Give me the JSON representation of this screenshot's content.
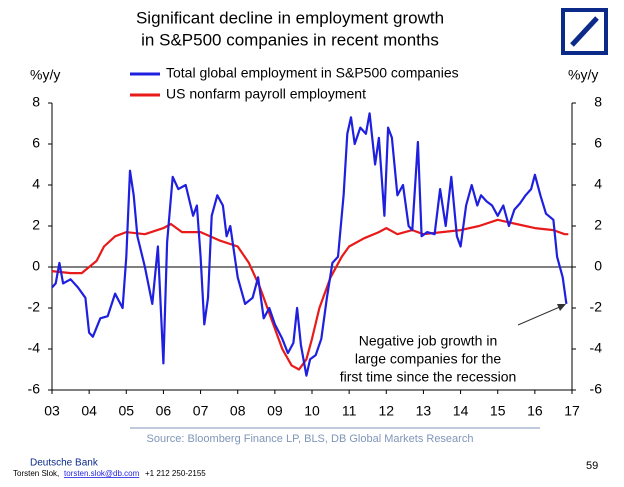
{
  "chart_data": {
    "type": "line",
    "title": [
      "Significant decline in employment growth",
      "in S&P500 companies in recent months"
    ],
    "y_label": "%y/y",
    "y2_label": "%y/y",
    "xlim": [
      2003,
      2017
    ],
    "xticks": [
      {
        "value": 2003,
        "label": "03"
      },
      {
        "value": 2004,
        "label": "04"
      },
      {
        "value": 2005,
        "label": "05"
      },
      {
        "value": 2006,
        "label": "06"
      },
      {
        "value": 2007,
        "label": "07"
      },
      {
        "value": 2008,
        "label": "08"
      },
      {
        "value": 2009,
        "label": "09"
      },
      {
        "value": 2010,
        "label": "10"
      },
      {
        "value": 2011,
        "label": "11"
      },
      {
        "value": 2012,
        "label": "12"
      },
      {
        "value": 2013,
        "label": "13"
      },
      {
        "value": 2014,
        "label": "14"
      },
      {
        "value": 2015,
        "label": "15"
      },
      {
        "value": 2016,
        "label": "16"
      },
      {
        "value": 2017,
        "label": "17"
      }
    ],
    "ylim": [
      -6,
      8
    ],
    "yticks": [
      -6,
      -4,
      -2,
      0,
      2,
      4,
      6,
      8
    ],
    "y2lim": [
      -6,
      8
    ],
    "y2ticks": [
      -6,
      -4,
      -2,
      0,
      2,
      4,
      6,
      8
    ],
    "grid": false,
    "series": [
      {
        "name": "Total global employment in S&P500 companies",
        "color": "#1f1fe0",
        "x": [
          2003.0,
          2003.1,
          2003.2,
          2003.3,
          2003.5,
          2003.7,
          2003.9,
          2004.0,
          2004.1,
          2004.3,
          2004.5,
          2004.7,
          2004.9,
          2005.0,
          2005.1,
          2005.2,
          2005.3,
          2005.5,
          2005.7,
          2005.85,
          2006.0,
          2006.1,
          2006.25,
          2006.4,
          2006.6,
          2006.8,
          2006.9,
          2007.0,
          2007.1,
          2007.2,
          2007.3,
          2007.45,
          2007.6,
          2007.7,
          2007.8,
          2008.0,
          2008.2,
          2008.4,
          2008.55,
          2008.7,
          2008.85,
          2009.0,
          2009.2,
          2009.35,
          2009.5,
          2009.6,
          2009.7,
          2009.85,
          2009.95,
          2010.1,
          2010.25,
          2010.4,
          2010.55,
          2010.7,
          2010.85,
          2010.95,
          2011.05,
          2011.15,
          2011.3,
          2011.45,
          2011.55,
          2011.7,
          2011.8,
          2011.95,
          2012.05,
          2012.15,
          2012.3,
          2012.45,
          2012.6,
          2012.7,
          2012.85,
          2012.95,
          2013.1,
          2013.3,
          2013.45,
          2013.6,
          2013.75,
          2013.9,
          2014.0,
          2014.15,
          2014.3,
          2014.45,
          2014.55,
          2014.7,
          2014.85,
          2015.0,
          2015.15,
          2015.3,
          2015.45,
          2015.6,
          2015.75,
          2015.9,
          2016.0,
          2016.15,
          2016.3,
          2016.5,
          2016.6,
          2016.75,
          2016.85
        ],
        "values": [
          -1.0,
          -0.8,
          0.2,
          -0.8,
          -0.6,
          -1.0,
          -1.5,
          -3.2,
          -3.4,
          -2.5,
          -2.4,
          -1.3,
          -2.0,
          0.5,
          4.7,
          3.5,
          1.5,
          0.0,
          -1.8,
          1.0,
          -4.7,
          1.2,
          4.4,
          3.8,
          4.0,
          2.5,
          3.0,
          0.5,
          -2.8,
          -1.5,
          2.5,
          3.5,
          3.0,
          1.5,
          2.0,
          -0.5,
          -1.8,
          -1.5,
          -0.5,
          -2.5,
          -2.0,
          -2.8,
          -3.5,
          -4.2,
          -3.7,
          -2.0,
          -3.8,
          -5.3,
          -4.5,
          -4.3,
          -3.5,
          -1.5,
          0.2,
          0.5,
          3.5,
          6.5,
          7.3,
          6.0,
          6.8,
          6.5,
          7.5,
          5.0,
          6.3,
          2.5,
          6.8,
          6.3,
          3.5,
          4.0,
          2.0,
          1.8,
          6.1,
          1.5,
          1.7,
          1.6,
          3.8,
          2.0,
          4.4,
          1.5,
          1.0,
          3.0,
          4.0,
          3.0,
          3.5,
          3.2,
          3.0,
          2.5,
          3.0,
          2.0,
          2.8,
          3.1,
          3.5,
          3.8,
          4.5,
          3.5,
          2.6,
          2.3,
          0.5,
          -0.5,
          -1.8
        ]
      },
      {
        "name": "US nonfarm payroll employment",
        "color": "#e81a1a",
        "x": [
          2003.0,
          2003.5,
          2003.8,
          2004.2,
          2004.4,
          2004.7,
          2005.0,
          2005.5,
          2006.0,
          2006.2,
          2006.5,
          2007.0,
          2007.5,
          2008.0,
          2008.3,
          2008.6,
          2008.9,
          2009.2,
          2009.45,
          2009.65,
          2009.85,
          2010.0,
          2010.2,
          2010.5,
          2010.8,
          2011.0,
          2011.4,
          2011.8,
          2012.0,
          2012.3,
          2012.7,
          2013.0,
          2013.5,
          2014.0,
          2014.5,
          2015.0,
          2015.5,
          2016.0,
          2016.5,
          2016.8,
          2016.9
        ],
        "values": [
          -0.2,
          -0.3,
          -0.3,
          0.3,
          1.0,
          1.5,
          1.7,
          1.6,
          1.9,
          2.1,
          1.7,
          1.7,
          1.3,
          1.0,
          0.2,
          -1.0,
          -2.5,
          -4.0,
          -4.8,
          -5.0,
          -4.5,
          -3.5,
          -2.0,
          -0.5,
          0.5,
          1.0,
          1.4,
          1.7,
          1.9,
          1.6,
          1.8,
          1.6,
          1.7,
          1.8,
          2.0,
          2.3,
          2.1,
          1.9,
          1.8,
          1.6,
          1.6
        ]
      }
    ],
    "annotation": [
      "Negative job growth in",
      "large companies for the",
      "first time since the recession"
    ],
    "source": "Source: Bloomberg Finance LP, BLS, DB Global Markets Research",
    "footer": {
      "company": "Deutsche Bank",
      "author": "Torsten Slok,",
      "email": "torsten.slok@db.com",
      "phone": "+1 212 250-2155",
      "page": "59"
    }
  }
}
